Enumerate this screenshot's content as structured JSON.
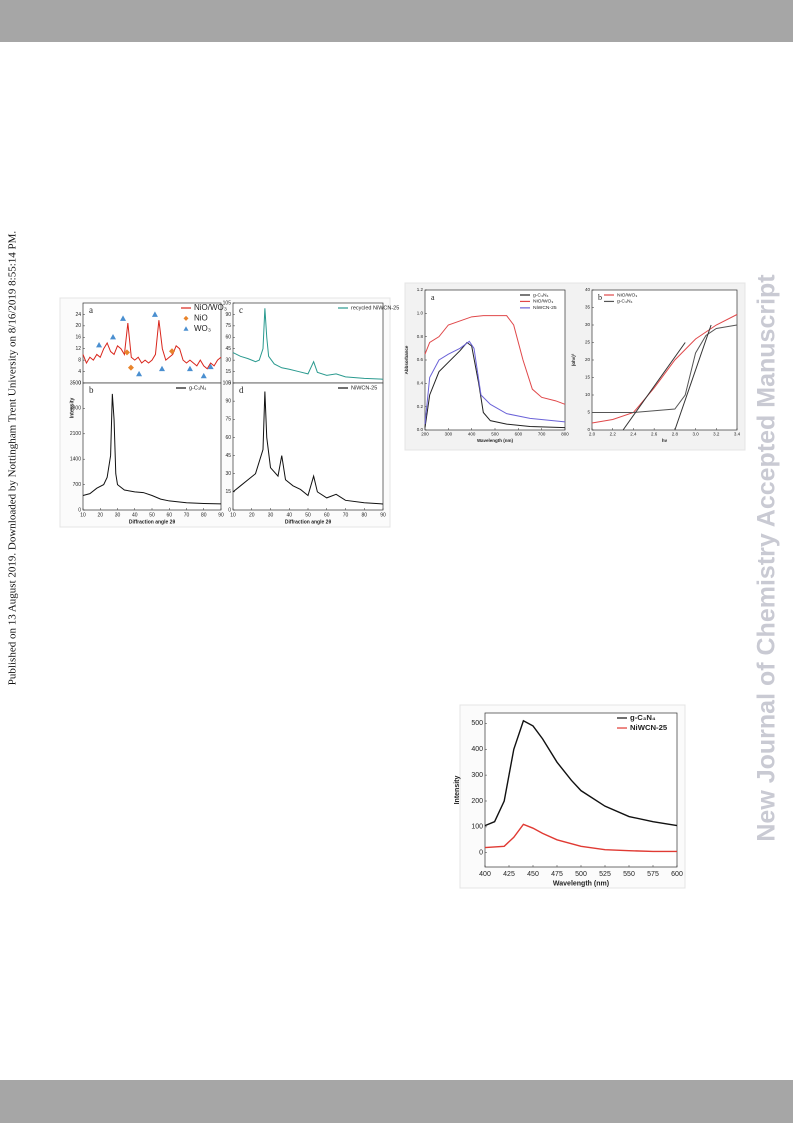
{
  "side_note": "Published on 13 August 2019. Downloaded by Nottingham Trent University on 8/16/2019 8:55:14 PM.",
  "watermark": "New Journal of Chemistry Accepted Manuscript",
  "figures": [
    {
      "ylabel": "Intensity",
      "panels": [
        {
          "label": "a",
          "legend": "upper right",
          "xlim": [
            10,
            90
          ],
          "ylim": [
            0,
            28
          ],
          "yticks": [
            0,
            4,
            8,
            12,
            16,
            20,
            24
          ],
          "series": [
            {
              "name": "NiO/WO₃",
              "color": "#d9261c",
              "x": [
                10,
                12,
                14,
                16,
                18,
                20,
                22,
                24,
                26,
                28,
                30,
                32,
                34,
                36,
                38,
                40,
                42,
                44,
                46,
                48,
                50,
                52,
                54,
                56,
                58,
                60,
                62,
                64,
                66,
                68,
                70,
                72,
                74,
                76,
                78,
                80,
                82,
                84,
                86,
                88,
                90
              ],
              "y": [
                10,
                7,
                9,
                8,
                10,
                9,
                12,
                14,
                11,
                10,
                13,
                12,
                10,
                21,
                9,
                8,
                9,
                7,
                8,
                7,
                8,
                10,
                22,
                12,
                8,
                9,
                10,
                13,
                12,
                8,
                7,
                8,
                7,
                6,
                8,
                6,
                5,
                7,
                6,
                8,
                9
              ]
            },
            {
              "name": "NiO",
              "color": "#e8842c",
              "marker": "diamond",
              "x": [
                35.5,
                37.8,
                61.6
              ],
              "y": [
                10.7,
                5.4,
                11.1
              ]
            },
            {
              "name": "WO₃",
              "color": "#4a8fd0",
              "marker": "triangle",
              "x": [
                19.3,
                27.4,
                33.2,
                42.5,
                51.7,
                55.8,
                72,
                80,
                84
              ],
              "y": [
                13.3,
                16.1,
                22.6,
                3.2,
                24,
                5,
                5,
                2.5,
                5.7
              ]
            }
          ]
        },
        {
          "label": "b",
          "legend": "upper right",
          "xlim": [
            10,
            90
          ],
          "ylim": [
            0,
            3500
          ],
          "xticks": [
            10,
            20,
            30,
            40,
            50,
            60,
            70,
            80,
            90
          ],
          "yticks": [
            0,
            700,
            1400,
            2100,
            2800,
            3500
          ],
          "xlabel": "Diffraction angle 2θ",
          "series": [
            {
              "name": "g-C₃N₄",
              "color": "#111111",
              "x": [
                10,
                14,
                18,
                22,
                24,
                26,
                27,
                28,
                29,
                30,
                34,
                40,
                45,
                50,
                55,
                60,
                70,
                80,
                90
              ],
              "y": [
                400,
                450,
                600,
                700,
                900,
                1500,
                3200,
                2500,
                1000,
                700,
                550,
                500,
                480,
                400,
                300,
                250,
                200,
                180,
                170
              ]
            }
          ]
        },
        {
          "label": "c",
          "legend": "upper right",
          "xlim": [
            10,
            90
          ],
          "ylim": [
            0,
            105
          ],
          "yticks": [
            0,
            15,
            30,
            45,
            60,
            75,
            90,
            105
          ],
          "series": [
            {
              "name": "recycled NiWCN-25",
              "color": "#2a9a8f",
              "x": [
                10,
                14,
                18,
                22,
                24,
                26,
                27,
                28,
                29,
                32,
                36,
                40,
                45,
                50,
                53,
                55,
                60,
                65,
                70,
                80,
                90
              ],
              "y": [
                40,
                35,
                32,
                28,
                30,
                45,
                98,
                60,
                35,
                25,
                20,
                18,
                15,
                12,
                28,
                14,
                10,
                12,
                8,
                6,
                5
              ]
            }
          ]
        },
        {
          "label": "d",
          "legend": "upper right",
          "xlim": [
            10,
            90
          ],
          "ylim": [
            0,
            105
          ],
          "xticks": [
            10,
            20,
            30,
            40,
            50,
            60,
            70,
            80,
            90
          ],
          "yticks": [
            0,
            15,
            30,
            45,
            60,
            75,
            90,
            105
          ],
          "xlabel": "Diffraction angle 2θ",
          "series": [
            {
              "name": "NiWCN-25",
              "color": "#111111",
              "x": [
                10,
                14,
                18,
                22,
                26,
                27,
                28,
                30,
                34,
                36,
                38,
                42,
                46,
                50,
                53,
                55,
                60,
                65,
                70,
                80,
                90
              ],
              "y": [
                15,
                20,
                25,
                30,
                50,
                98,
                60,
                35,
                28,
                45,
                25,
                20,
                17,
                12,
                28,
                15,
                10,
                13,
                8,
                6,
                5
              ]
            }
          ]
        }
      ]
    },
    {
      "panels": [
        {
          "label": "a",
          "legend": "upper right",
          "xlim": [
            200,
            800
          ],
          "ylim": [
            0,
            1.2
          ],
          "xticks": [
            200,
            300,
            400,
            500,
            600,
            700,
            800
          ],
          "yticks": [
            {
              "value": 0,
              "label": "0.0"
            },
            0.2,
            0.4,
            0.6,
            0.8,
            {
              "value": 1,
              "label": "1.0"
            },
            1.2
          ],
          "xlabel": "Wavelength (nm)",
          "ylabel": "Abbsorbance",
          "series": [
            {
              "name": "g-C₃N₄",
              "color": "#222222",
              "x": [
                200,
                220,
                260,
                300,
                350,
                380,
                400,
                430,
                450,
                480,
                550,
                650,
                800
              ],
              "y": [
                0.02,
                0.3,
                0.5,
                0.58,
                0.68,
                0.75,
                0.72,
                0.4,
                0.15,
                0.08,
                0.05,
                0.03,
                0.02
              ]
            },
            {
              "name": "NiO/WO₃",
              "color": "#e0484a",
              "x": [
                200,
                220,
                260,
                300,
                400,
                450,
                550,
                580,
                620,
                660,
                700,
                760,
                800
              ],
              "y": [
                0.65,
                0.75,
                0.8,
                0.9,
                0.97,
                0.98,
                0.98,
                0.9,
                0.6,
                0.35,
                0.28,
                0.25,
                0.22
              ]
            },
            {
              "name": "NiWCN-25",
              "color": "#6b63d8",
              "x": [
                200,
                220,
                260,
                300,
                350,
                390,
                410,
                440,
                480,
                550,
                650,
                800
              ],
              "y": [
                0.05,
                0.45,
                0.6,
                0.65,
                0.7,
                0.76,
                0.7,
                0.3,
                0.22,
                0.14,
                0.1,
                0.07
              ]
            }
          ]
        },
        {
          "label": "b",
          "legend": "upper left",
          "xlim": [
            2,
            3.4
          ],
          "ylim": [
            0,
            40
          ],
          "xticks": [
            {
              "value": 2,
              "label": "2.0"
            },
            2.2,
            2.4,
            2.6,
            2.8,
            {
              "value": 3,
              "label": "3.0"
            },
            3.2,
            3.4
          ],
          "yticks": [
            0,
            5,
            10,
            15,
            20,
            25,
            30,
            35,
            40
          ],
          "xlabel": "hν",
          "ylabel": "(αhν)²",
          "series": [
            {
              "name": "NiO/WO₃",
              "color": "#e0484a",
              "x": [
                2,
                2.2,
                2.4,
                2.6,
                2.8,
                3,
                3.2,
                3.4
              ],
              "y": [
                2,
                3,
                5,
                12,
                20,
                26,
                30,
                33
              ]
            },
            {
              "name": "g-C₃N₄",
              "color": "#555555",
              "x": [
                2,
                2.4,
                2.8,
                2.9,
                3,
                3.1,
                3.2,
                3.4
              ],
              "y": [
                5,
                5,
                6,
                10,
                22,
                27,
                29,
                30
              ]
            },
            {
              "color": "#333333",
              "x": [
                2.3,
                2.9
              ],
              "y": [
                0,
                25
              ]
            },
            {
              "color": "#333333",
              "x": [
                2.8,
                3.15
              ],
              "y": [
                0,
                30
              ]
            }
          ]
        }
      ]
    },
    {
      "panels": [
        {
          "legend": "upper right",
          "xlim": [
            400,
            600
          ],
          "ylim": [
            -55,
            540
          ],
          "xticks": [
            400,
            425,
            450,
            475,
            500,
            525,
            550,
            575,
            600
          ],
          "yticks": [
            0,
            100,
            200,
            300,
            400,
            500
          ],
          "xlabel": "Wavelength (nm)",
          "ylabel": "Intensity",
          "series": [
            {
              "name": "g-C₃N₄",
              "color": "#111111",
              "x": [
                400,
                410,
                420,
                430,
                440,
                450,
                460,
                475,
                490,
                500,
                525,
                550,
                575,
                600
              ],
              "y": [
                105,
                120,
                200,
                400,
                510,
                490,
                440,
                350,
                280,
                240,
                180,
                140,
                120,
                105
              ]
            },
            {
              "name": "NiWCN-25",
              "color": "#e03a33",
              "x": [
                400,
                420,
                430,
                440,
                450,
                460,
                475,
                500,
                525,
                550,
                575,
                600
              ],
              "y": [
                20,
                25,
                60,
                110,
                95,
                75,
                50,
                25,
                12,
                8,
                5,
                5
              ]
            }
          ]
        }
      ]
    }
  ]
}
